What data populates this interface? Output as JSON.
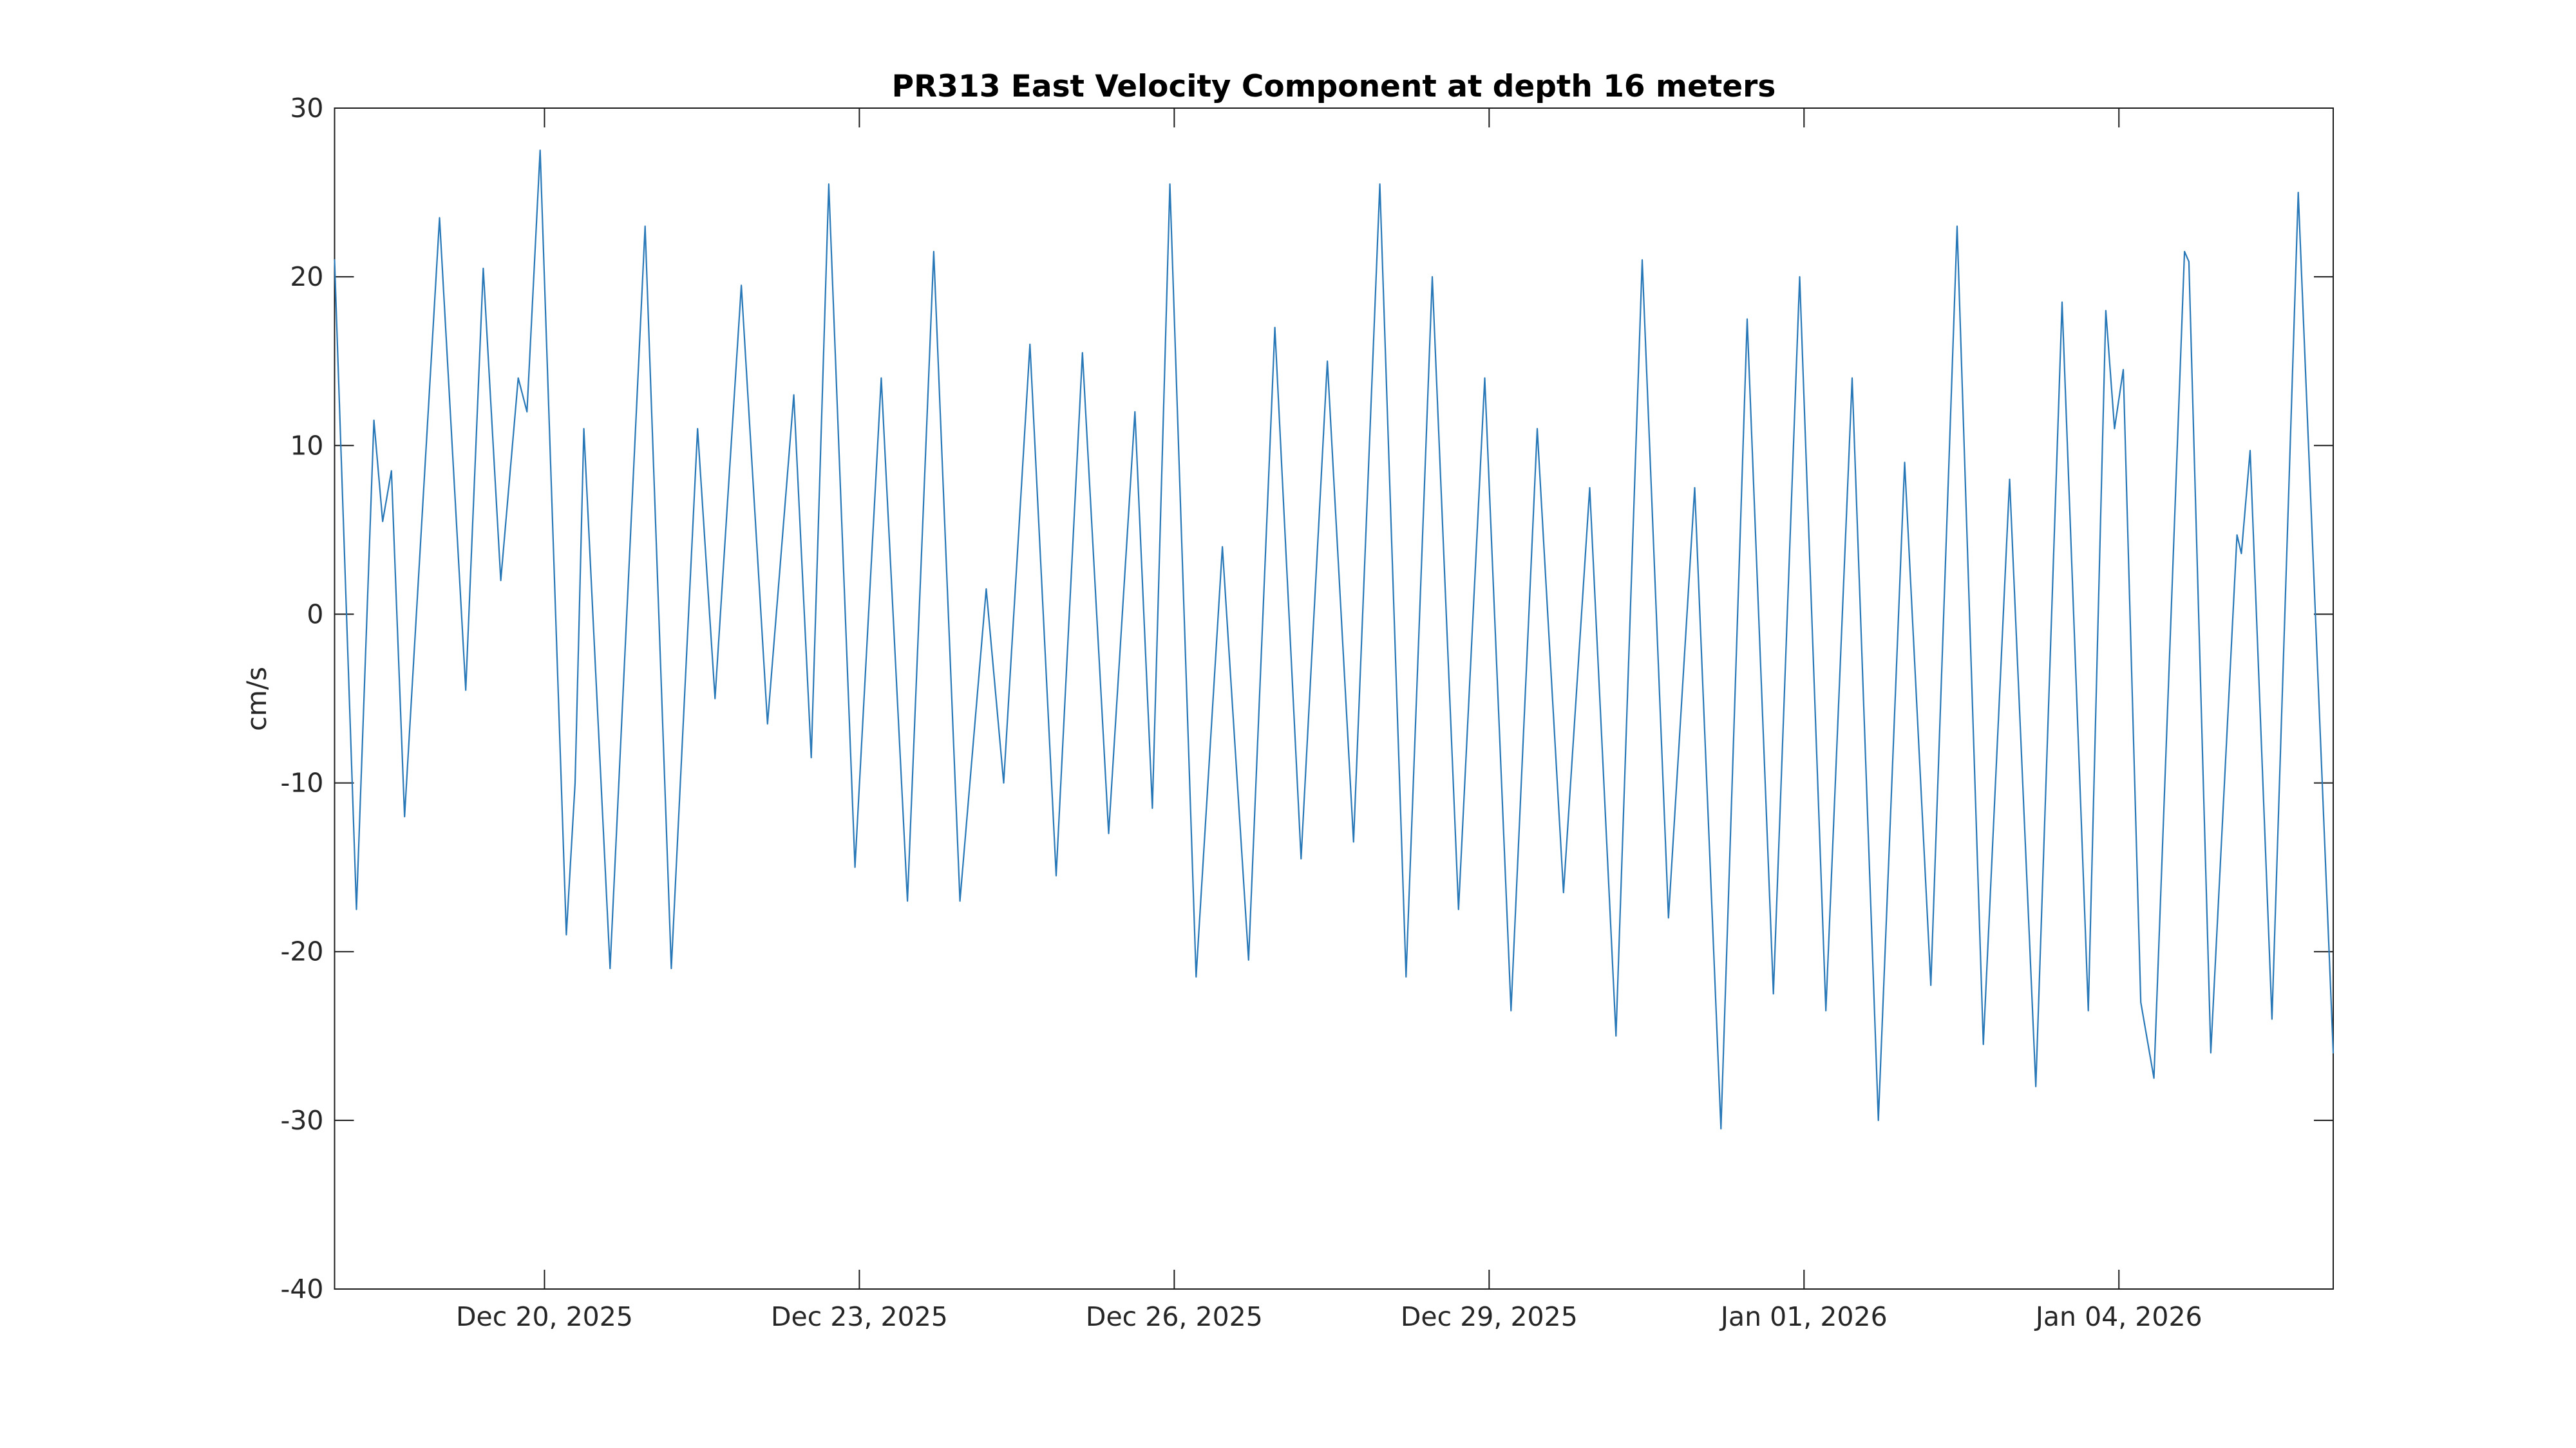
{
  "chart_data": {
    "type": "line",
    "title": "PR313 East Velocity Component at depth 16 meters",
    "xlabel": "",
    "ylabel": "cm/s",
    "ylim": [
      -40,
      30
    ],
    "yticks": [
      30,
      20,
      10,
      0,
      -10,
      -20,
      -30,
      -40
    ],
    "x_unit": "hours since Dec 18, 2025 00:00",
    "xlim": [
      0,
      457
    ],
    "xticks": [
      {
        "t": 48,
        "label": "Dec 20, 2025"
      },
      {
        "t": 120,
        "label": "Dec 23, 2025"
      },
      {
        "t": 192,
        "label": "Dec 26, 2025"
      },
      {
        "t": 264,
        "label": "Dec 29, 2025"
      },
      {
        "t": 336,
        "label": "Jan 01, 2026"
      },
      {
        "t": 408,
        "label": "Jan 04, 2026"
      }
    ],
    "grid": false,
    "legend": "none",
    "box": true,
    "ticks_inward_all_sides": true,
    "style": {
      "line_color": "#2878b8",
      "axis_color": "#1a1a1a",
      "text_color": "#262626",
      "background": "#ffffff"
    },
    "series": [
      {
        "name": "east velocity",
        "points": [
          [
            0,
            21
          ],
          [
            5,
            -17.5
          ],
          [
            9,
            11.5
          ],
          [
            11,
            5.5
          ],
          [
            13,
            8.5
          ],
          [
            16,
            -12
          ],
          [
            24,
            23.5
          ],
          [
            30,
            -4.5
          ],
          [
            34,
            20.5
          ],
          [
            38,
            2
          ],
          [
            42,
            14
          ],
          [
            44,
            12
          ],
          [
            47,
            27.5
          ],
          [
            53,
            -19
          ],
          [
            55,
            -10
          ],
          [
            57,
            11
          ],
          [
            63,
            -21
          ],
          [
            71,
            23
          ],
          [
            77,
            -21
          ],
          [
            83,
            11
          ],
          [
            87,
            -5
          ],
          [
            93,
            19.5
          ],
          [
            99,
            -6.5
          ],
          [
            105,
            13
          ],
          [
            109,
            -8.5
          ],
          [
            113,
            25.5
          ],
          [
            119,
            -15
          ],
          [
            125,
            14
          ],
          [
            131,
            -17
          ],
          [
            137,
            21.5
          ],
          [
            143,
            -17
          ],
          [
            149,
            1.5
          ],
          [
            153,
            -10
          ],
          [
            159,
            16
          ],
          [
            165,
            -15.5
          ],
          [
            171,
            15.5
          ],
          [
            177,
            -13
          ],
          [
            183,
            12
          ],
          [
            187,
            -11.5
          ],
          [
            191,
            25.5
          ],
          [
            197,
            -21.5
          ],
          [
            203,
            4
          ],
          [
            209,
            -20.5
          ],
          [
            215,
            17
          ],
          [
            221,
            -14.5
          ],
          [
            227,
            15
          ],
          [
            233,
            -13.5
          ],
          [
            239,
            25.5
          ],
          [
            245,
            -21.5
          ],
          [
            251,
            20
          ],
          [
            257,
            -17.5
          ],
          [
            263,
            14
          ],
          [
            269,
            -23.5
          ],
          [
            275,
            11
          ],
          [
            281,
            -16.5
          ],
          [
            287,
            7.5
          ],
          [
            293,
            -25
          ],
          [
            299,
            21
          ],
          [
            305,
            -18
          ],
          [
            311,
            7.5
          ],
          [
            317,
            -30.5
          ],
          [
            323,
            17.5
          ],
          [
            329,
            -22.5
          ],
          [
            335,
            20
          ],
          [
            341,
            -23.5
          ],
          [
            347,
            14
          ],
          [
            353,
            -30
          ],
          [
            359,
            9
          ],
          [
            365,
            -22
          ],
          [
            371,
            23
          ],
          [
            377,
            -25.5
          ],
          [
            383,
            8
          ],
          [
            389,
            -28
          ],
          [
            395,
            18.5
          ],
          [
            401,
            -23.5
          ],
          [
            405,
            18
          ],
          [
            407,
            11
          ],
          [
            409,
            14.5
          ],
          [
            413,
            -23
          ],
          [
            416,
            -27.5
          ],
          [
            423,
            21.5
          ],
          [
            424,
            20.9
          ],
          [
            429,
            -26
          ],
          [
            435,
            4.7
          ],
          [
            436,
            3.6
          ],
          [
            438,
            9.7
          ],
          [
            443,
            -24
          ],
          [
            449,
            25
          ],
          [
            457,
            -26
          ]
        ]
      }
    ]
  }
}
